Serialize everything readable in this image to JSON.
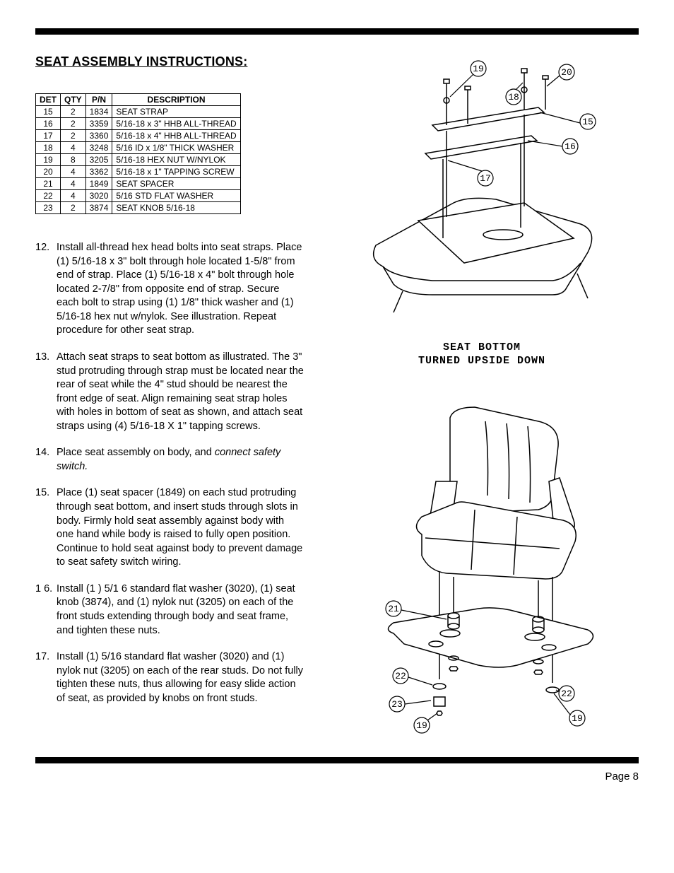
{
  "title": "SEAT ASSEMBLY INSTRUCTIONS:",
  "page_label": "Page 8",
  "parts_table": {
    "headers": [
      "DET",
      "QTY",
      "P/N",
      "DESCRIPTION"
    ],
    "rows": [
      [
        "15",
        "2",
        "1834",
        "SEAT STRAP"
      ],
      [
        "16",
        "2",
        "3359",
        "5/16-18 x 3\" HHB ALL-THREAD"
      ],
      [
        "17",
        "2",
        "3360",
        "5/16-18 x 4\" HHB ALL-THREAD"
      ],
      [
        "18",
        "4",
        "3248",
        "5/16 ID x 1/8\" THICK WASHER"
      ],
      [
        "19",
        "8",
        "3205",
        "5/16-18 HEX NUT W/NYLOK"
      ],
      [
        "20",
        "4",
        "3362",
        "5/16-18 x 1\" TAPPING SCREW"
      ],
      [
        "21",
        "4",
        "1849",
        "SEAT SPACER"
      ],
      [
        "22",
        "4",
        "3020",
        "5/16 STD FLAT WASHER"
      ],
      [
        "23",
        "2",
        "3874",
        "SEAT KNOB 5/16-18"
      ]
    ]
  },
  "steps": [
    {
      "num": "12.",
      "text": "Install all-thread hex head bolts into seat straps. Place (1) 5/16-18 x 3\" bolt through hole located 1-5/8\" from end of strap. Place (1) 5/16-18 x 4\" bolt through hole located 2-7/8\" from opposite end of strap. Secure each bolt to strap using (1) 1/8\" thick washer and (1) 5/16-18 hex nut w/nylok. See illustration. Repeat procedure for other seat strap."
    },
    {
      "num": "13.",
      "text": "Attach seat straps to seat bottom as illustrated. The 3\" stud protruding through strap must be located near the rear of seat while the 4\" stud should be nearest the front edge of seat. Align remaining seat strap holes with holes in bottom of seat as shown, and attach seat straps using (4) 5/16-18 X 1\" tapping screws."
    },
    {
      "num": "14.",
      "text": "Place seat assembly on body, and ",
      "italic_suffix": "connect safety switch."
    },
    {
      "num": "15.",
      "text": "Place (1) seat spacer (1849) on each stud protruding through seat bottom, and insert studs through slots in body. Firmly hold seat assembly against body with one hand while body is raised to fully open position. Continue to hold seat against body to prevent damage to seat safety switch wiring."
    },
    {
      "num": "1 6.",
      "text": "Install (1 ) 5/1 6 standard flat washer (3020), (1) seat knob (3874), and (1) nylok nut (3205) on each of the front studs extending through body and seat frame, and tighten these nuts."
    },
    {
      "num": "17.",
      "text": "Install (1) 5/16 standard flat washer (3020) and (1) nylok nut (3205) on each of the rear studs. Do not fully tighten these nuts, thus allowing for easy slide action of seat, as provided by knobs on front studs."
    }
  ],
  "diagram1": {
    "caption_line1": "SEAT BOTTOM",
    "caption_line2": "TURNED UPSIDE DOWN",
    "callouts": [
      "19",
      "20",
      "18",
      "15",
      "16",
      "17"
    ]
  },
  "diagram2": {
    "callouts": [
      "21",
      "22",
      "23",
      "22",
      "19",
      "19"
    ]
  }
}
